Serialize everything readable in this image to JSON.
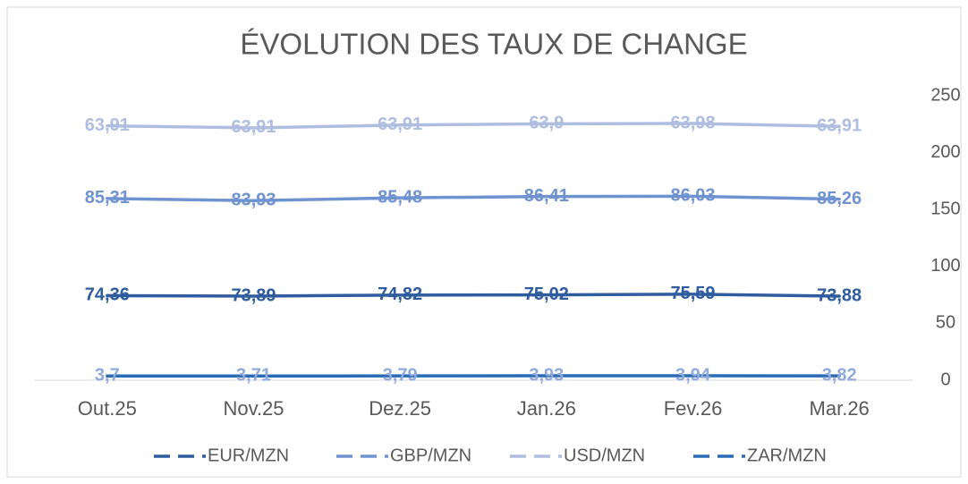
{
  "chart_data": {
    "type": "line",
    "title": "ÉVOLUTION DES TAUX DE CHANGE",
    "categories": [
      "Out.25",
      "Nov.25",
      "Dez.25",
      "Jan.26",
      "Fev.26",
      "Mar.26"
    ],
    "ylim": [
      0,
      250
    ],
    "yticks": [
      0,
      50,
      100,
      150,
      200,
      250
    ],
    "y_axis_side": "right",
    "legend": "bottom",
    "stacked": true,
    "series": [
      {
        "name": "EUR/MZN",
        "color": "#2e5c9e",
        "label_color": "#2e5c9e",
        "stacked": true,
        "values": [
          74.36,
          73.89,
          74.82,
          75.02,
          75.59,
          73.88
        ],
        "value_labels": [
          "74,36",
          "73,89",
          "74,82",
          "75,02",
          "75,59",
          "73,88"
        ]
      },
      {
        "name": "GBP/MZN",
        "color": "#6f93d1",
        "label_color": "#6f93d1",
        "stacked": true,
        "values": [
          85.31,
          83.93,
          85.48,
          86.41,
          86.03,
          85.26
        ],
        "value_labels": [
          "85,31",
          "83,93",
          "85,48",
          "86,41",
          "86,03",
          "85,26"
        ]
      },
      {
        "name": "USD/MZN",
        "color": "#aebde0",
        "label_color": "#aebde0",
        "stacked": true,
        "values": [
          63.91,
          63.91,
          63.91,
          63.9,
          63.98,
          63.91
        ],
        "value_labels": [
          "63,91",
          "63,91",
          "63,91",
          "63,9",
          "63,98",
          "63,91"
        ]
      },
      {
        "name": "ZAR/MZN",
        "color": "#2a6bb5",
        "label_color": "#8faadc",
        "stacked": false,
        "values": [
          3.7,
          3.71,
          3.79,
          3.93,
          3.94,
          3.82
        ],
        "value_labels": [
          "3,7",
          "3,71",
          "3,79",
          "3,93",
          "3,94",
          "3,82"
        ]
      }
    ]
  }
}
